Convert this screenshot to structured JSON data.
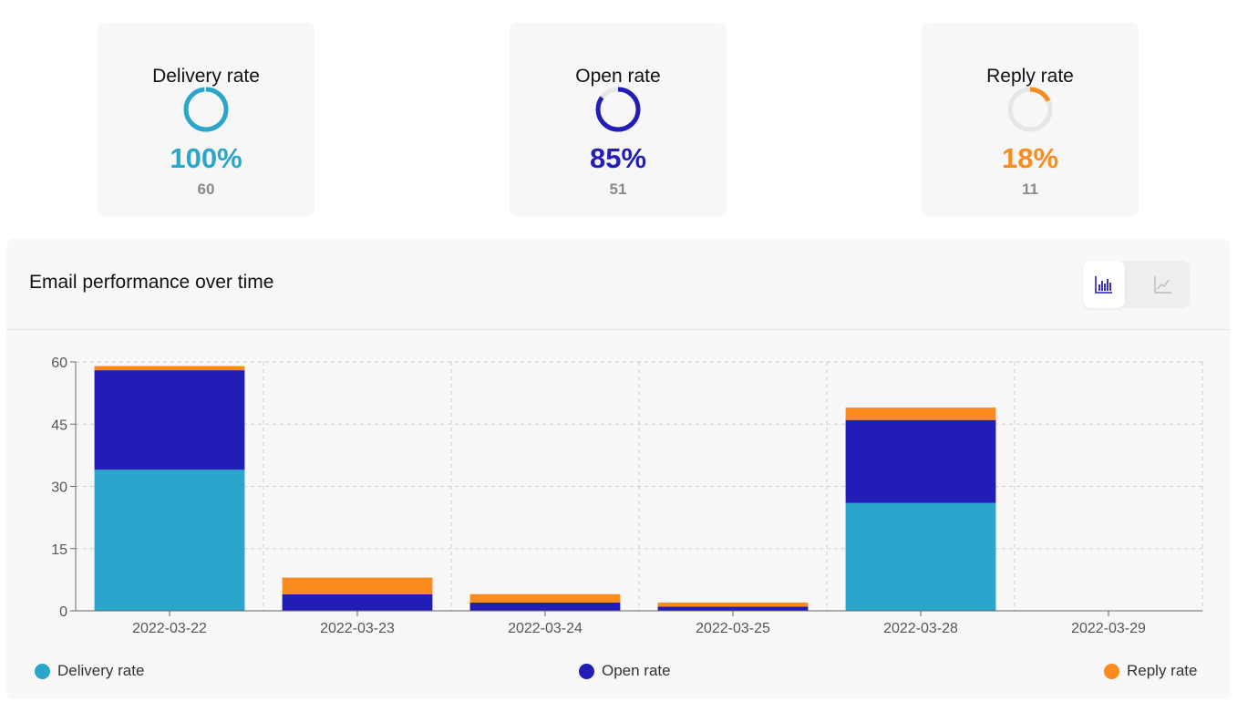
{
  "kpis": [
    {
      "title": "Delivery rate",
      "percent_label": "100%",
      "count_label": "60",
      "fraction": 1.0,
      "color": "#2ba5cc"
    },
    {
      "title": "Open rate",
      "percent_label": "85%",
      "count_label": "51",
      "fraction": 0.85,
      "color": "#221db6"
    },
    {
      "title": "Reply rate",
      "percent_label": "18%",
      "count_label": "11",
      "fraction": 0.18,
      "color": "#fb8a1f"
    }
  ],
  "panel": {
    "title": "Email performance over time",
    "toggle": {
      "active": "bar-chart-icon",
      "inactive": "line-chart-icon"
    }
  },
  "colors": {
    "ring_track": "#e6e6e6",
    "grid": "#cccccc"
  },
  "chart_data": {
    "type": "bar",
    "stacked": true,
    "categories": [
      "2022-03-22",
      "2022-03-23",
      "2022-03-24",
      "2022-03-25",
      "2022-03-28",
      "2022-03-29"
    ],
    "series": [
      {
        "name": "Delivery rate",
        "color": "#2ba5cc",
        "values": [
          34,
          0,
          0,
          0,
          26,
          0
        ]
      },
      {
        "name": "Open rate",
        "color": "#221db6",
        "values": [
          24,
          4,
          2,
          1,
          20,
          0
        ]
      },
      {
        "name": "Reply rate",
        "color": "#fb8a1f",
        "values": [
          1,
          4,
          2,
          1,
          3,
          0
        ]
      }
    ],
    "yticks": [
      0,
      15,
      30,
      45,
      60
    ],
    "ylim": [
      0,
      60
    ],
    "grid": true,
    "legend": "bottom"
  }
}
